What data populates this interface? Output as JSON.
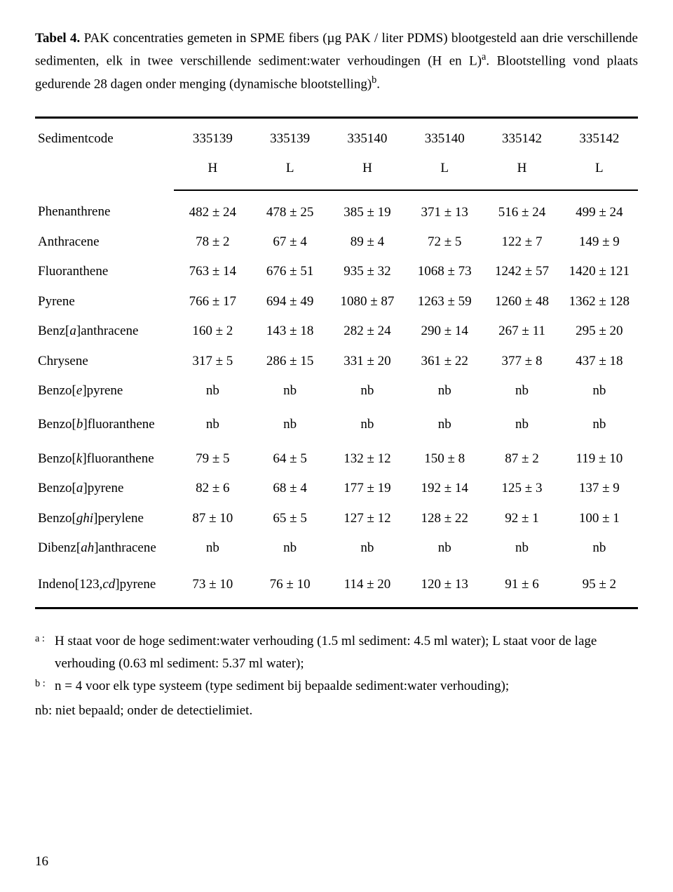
{
  "caption": {
    "label": "Tabel 4.",
    "text_part1": " PAK concentraties gemeten in SPME fibers (µg PAK / liter PDMS) blootgesteld aan drie verschillende sedimenten, elk in twee verschillende sediment:water verhoudingen (H en L)",
    "sup_a": "a",
    "text_part2": ". Blootstelling vond plaats gedurende 28 dagen onder menging (dynamische blootstelling)",
    "sup_b": "b",
    "text_part3": "."
  },
  "table": {
    "header_label": "Sedimentcode",
    "codes": [
      "335139",
      "335139",
      "335140",
      "335140",
      "335142",
      "335142"
    ],
    "subs": [
      "H",
      "L",
      "H",
      "L",
      "H",
      "L"
    ],
    "rows": [
      {
        "name": "Phenanthrene",
        "vals": [
          "482 ± 24",
          "478 ± 25",
          "385 ± 19",
          "371 ± 13",
          "516 ± 24",
          "499 ± 24"
        ]
      },
      {
        "name": "Anthracene",
        "vals": [
          "78 ± 2",
          "67 ± 4",
          "89 ± 4",
          "72 ± 5",
          "122 ± 7",
          "149 ± 9"
        ]
      },
      {
        "name": "Fluoranthene",
        "vals": [
          "763 ± 14",
          "676 ± 51",
          "935 ± 32",
          "1068 ± 73",
          "1242 ± 57",
          "1420 ± 121"
        ]
      },
      {
        "name": "Pyrene",
        "vals": [
          "766 ± 17",
          "694 ± 49",
          "1080 ± 87",
          "1263 ± 59",
          "1260 ± 48",
          "1362 ± 128"
        ]
      },
      {
        "name_html": "Benz[<span class=\"italic\">a</span>]anthracene",
        "vals": [
          "160 ± 2",
          "143 ± 18",
          "282 ± 24",
          "290 ± 14",
          "267 ± 11",
          "295 ± 20"
        ]
      },
      {
        "name": "Chrysene",
        "vals": [
          "317 ± 5",
          "286 ± 15",
          "331 ± 20",
          "361 ± 22",
          "377 ± 8",
          "437 ± 18"
        ]
      },
      {
        "name_html": "Benzo[<span class=\"italic\">e</span>]pyrene",
        "vals": [
          "nb",
          "nb",
          "nb",
          "nb",
          "nb",
          "nb"
        ]
      },
      {
        "name_html": "Benzo[<span class=\"italic\">b</span>]fluoranthene",
        "vals": [
          "nb",
          "nb",
          "nb",
          "nb",
          "nb",
          "nb"
        ],
        "gap": true
      },
      {
        "name_html": "Benzo[<span class=\"italic\">k</span>]fluoranthene",
        "vals": [
          "79 ± 5",
          "64 ± 5",
          "132 ± 12",
          "150 ± 8",
          "87 ± 2",
          "119 ± 10"
        ],
        "gap": true
      },
      {
        "name_html": "Benzo[<span class=\"italic\">a</span>]pyrene",
        "vals": [
          "82 ± 6",
          "68 ± 4",
          "177 ± 19",
          "192 ± 14",
          "125 ± 3",
          "137 ± 9"
        ]
      },
      {
        "name_html": "Benzo[<span class=\"italic\">ghi</span>]perylene",
        "vals": [
          "87 ± 10",
          "65 ± 5",
          "127 ± 12",
          "128 ± 22",
          "92 ± 1",
          "100 ± 1"
        ]
      },
      {
        "name_html": "Dibenz[<span class=\"italic\">ah</span>]anthracene",
        "vals": [
          "nb",
          "nb",
          "nb",
          "nb",
          "nb",
          "nb"
        ]
      },
      {
        "name_html": "Indeno[123,<span class=\"italic\">cd</span>]pyrene",
        "vals": [
          "73 ± 10",
          "76 ± 10",
          "114 ± 20",
          "120 ± 13",
          "91 ± 6",
          "95 ± 2"
        ]
      }
    ]
  },
  "footnotes": {
    "a_marker": "a :",
    "a_text": "H staat voor de hoge sediment:water verhouding (1.5 ml sediment: 4.5 ml water); L staat voor de lage verhouding (0.63 ml sediment: 5.37 ml water);",
    "b_marker": "b :",
    "b_text": "n = 4 voor elk type systeem (type sediment bij bepaalde sediment:water verhouding);",
    "nb_text": "nb: niet bepaald; onder de detectielimiet."
  },
  "page_number": "16"
}
